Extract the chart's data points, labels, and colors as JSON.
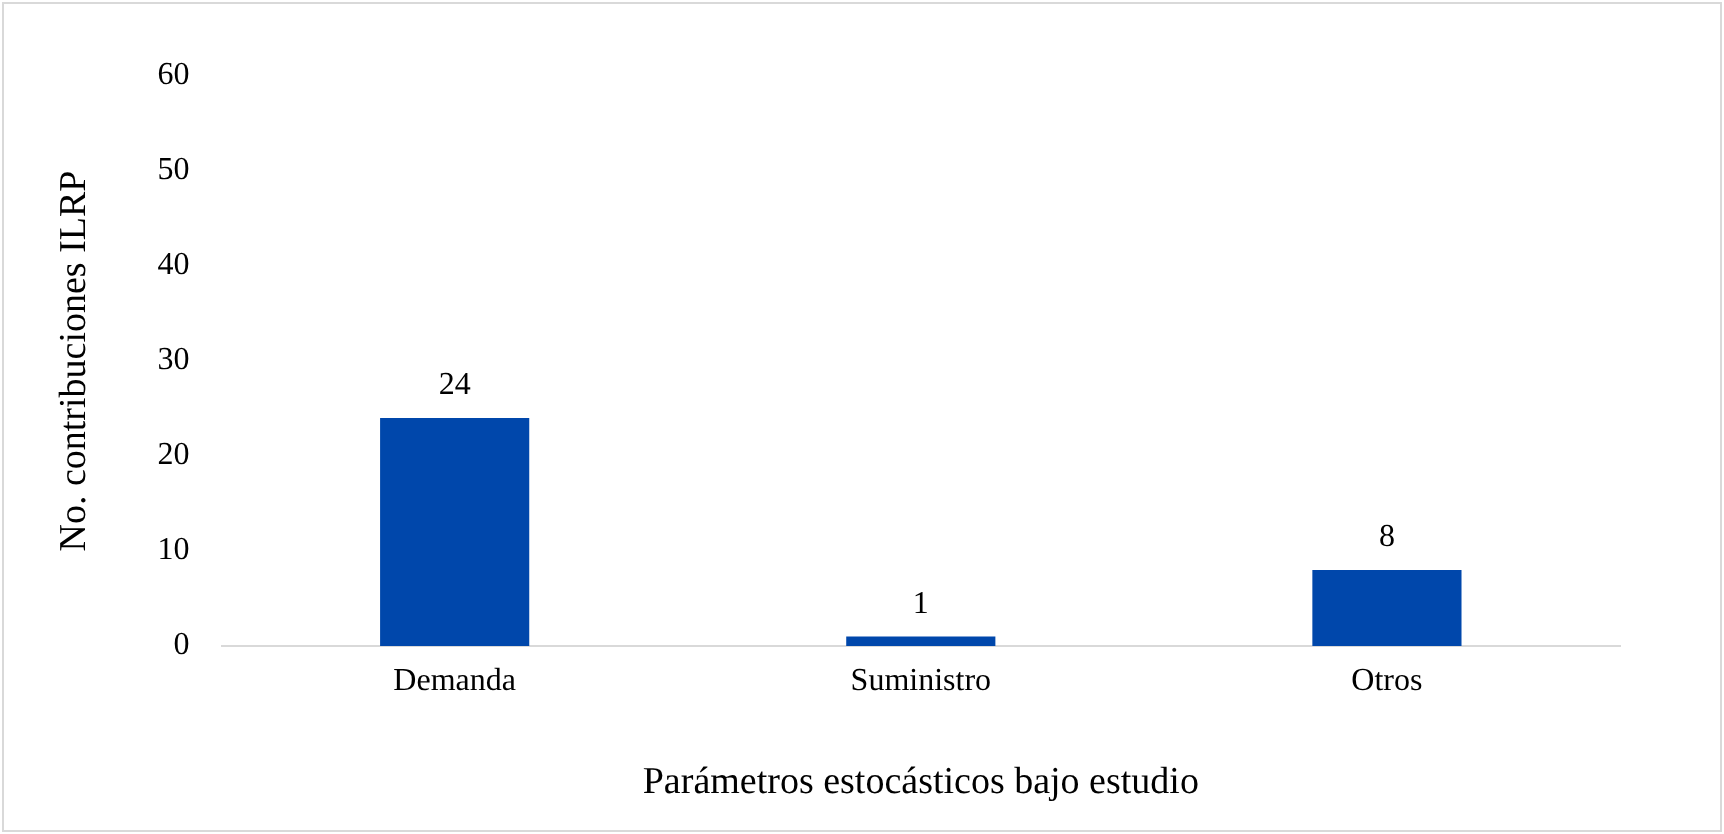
{
  "chart_data": {
    "type": "bar",
    "xlabel": "Parámetros estocásticos bajo estudio",
    "ylabel": "No. contribuciones ILRP",
    "categories": [
      "Demanda",
      "Suministro",
      "Otros"
    ],
    "values": [
      24,
      1,
      8
    ],
    "color": "#0047ab",
    "ylim": [
      0,
      60
    ],
    "yticks": [
      0,
      10,
      20,
      30,
      40,
      50,
      60
    ],
    "grid": false,
    "legend": false,
    "data_labels": true
  }
}
